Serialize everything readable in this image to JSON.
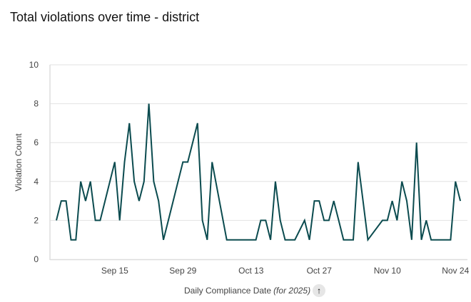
{
  "chart_data": {
    "type": "line",
    "title": "Total violations over time - district",
    "xlabel": "Daily Compliance Date",
    "xlabel_note": "(for 2025)",
    "ylabel": "Violation Count",
    "ylim": [
      0,
      10
    ],
    "yticks": [
      "0",
      "2",
      "4",
      "6",
      "8",
      "10"
    ],
    "xticks": [
      {
        "label": "Sep 15",
        "date": "2025-09-15"
      },
      {
        "label": "Sep 29",
        "date": "2025-09-29"
      },
      {
        "label": "Oct 13",
        "date": "2025-10-13"
      },
      {
        "label": "Oct 27",
        "date": "2025-10-27"
      },
      {
        "label": "Nov 10",
        "date": "2025-11-10"
      },
      {
        "label": "Nov 24",
        "date": "2025-11-24"
      }
    ],
    "grid": true,
    "line_color": "#0b4b4f",
    "sort_icon": "arrow-up-icon",
    "series": [
      {
        "name": "Violation Count",
        "points": [
          [
            "2025-09-03",
            2
          ],
          [
            "2025-09-04",
            3
          ],
          [
            "2025-09-05",
            3
          ],
          [
            "2025-09-06",
            1
          ],
          [
            "2025-09-07",
            1
          ],
          [
            "2025-09-08",
            4
          ],
          [
            "2025-09-09",
            3
          ],
          [
            "2025-09-10",
            4
          ],
          [
            "2025-09-11",
            2
          ],
          [
            "2025-09-12",
            2
          ],
          [
            "2025-09-13",
            3
          ],
          [
            "2025-09-14",
            4
          ],
          [
            "2025-09-15",
            5
          ],
          [
            "2025-09-16",
            2
          ],
          [
            "2025-09-17",
            5
          ],
          [
            "2025-09-18",
            7
          ],
          [
            "2025-09-19",
            4
          ],
          [
            "2025-09-20",
            3
          ],
          [
            "2025-09-21",
            4
          ],
          [
            "2025-09-22",
            8
          ],
          [
            "2025-09-23",
            4
          ],
          [
            "2025-09-24",
            3
          ],
          [
            "2025-09-25",
            1
          ],
          [
            "2025-09-26",
            2
          ],
          [
            "2025-09-27",
            3
          ],
          [
            "2025-09-28",
            4
          ],
          [
            "2025-09-29",
            5
          ],
          [
            "2025-09-30",
            5
          ],
          [
            "2025-10-01",
            6
          ],
          [
            "2025-10-02",
            7
          ],
          [
            "2025-10-03",
            2
          ],
          [
            "2025-10-04",
            1
          ],
          [
            "2025-10-05",
            5
          ],
          [
            "2025-10-08",
            1
          ],
          [
            "2025-10-09",
            1
          ],
          [
            "2025-10-10",
            1
          ],
          [
            "2025-10-11",
            1
          ],
          [
            "2025-10-12",
            1
          ],
          [
            "2025-10-13",
            1
          ],
          [
            "2025-10-14",
            1
          ],
          [
            "2025-10-15",
            2
          ],
          [
            "2025-10-16",
            2
          ],
          [
            "2025-10-17",
            1
          ],
          [
            "2025-10-18",
            4
          ],
          [
            "2025-10-19",
            2
          ],
          [
            "2025-10-20",
            1
          ],
          [
            "2025-10-21",
            1
          ],
          [
            "2025-10-22",
            1
          ],
          [
            "2025-10-24",
            2
          ],
          [
            "2025-10-25",
            1
          ],
          [
            "2025-10-26",
            3
          ],
          [
            "2025-10-27",
            3
          ],
          [
            "2025-10-28",
            2
          ],
          [
            "2025-10-29",
            2
          ],
          [
            "2025-10-30",
            3
          ],
          [
            "2025-10-31",
            2
          ],
          [
            "2025-11-01",
            1
          ],
          [
            "2025-11-02",
            1
          ],
          [
            "2025-11-03",
            1
          ],
          [
            "2025-11-04",
            5
          ],
          [
            "2025-11-05",
            3
          ],
          [
            "2025-11-06",
            1
          ],
          [
            "2025-11-09",
            2
          ],
          [
            "2025-11-10",
            2
          ],
          [
            "2025-11-11",
            3
          ],
          [
            "2025-11-12",
            2
          ],
          [
            "2025-11-13",
            4
          ],
          [
            "2025-11-14",
            3
          ],
          [
            "2025-11-15",
            1
          ],
          [
            "2025-11-16",
            6
          ],
          [
            "2025-11-17",
            1
          ],
          [
            "2025-11-18",
            2
          ],
          [
            "2025-11-19",
            1
          ],
          [
            "2025-11-20",
            1
          ],
          [
            "2025-11-21",
            1
          ],
          [
            "2025-11-22",
            1
          ],
          [
            "2025-11-23",
            1
          ],
          [
            "2025-11-24",
            4
          ],
          [
            "2025-11-25",
            3
          ]
        ]
      }
    ]
  }
}
